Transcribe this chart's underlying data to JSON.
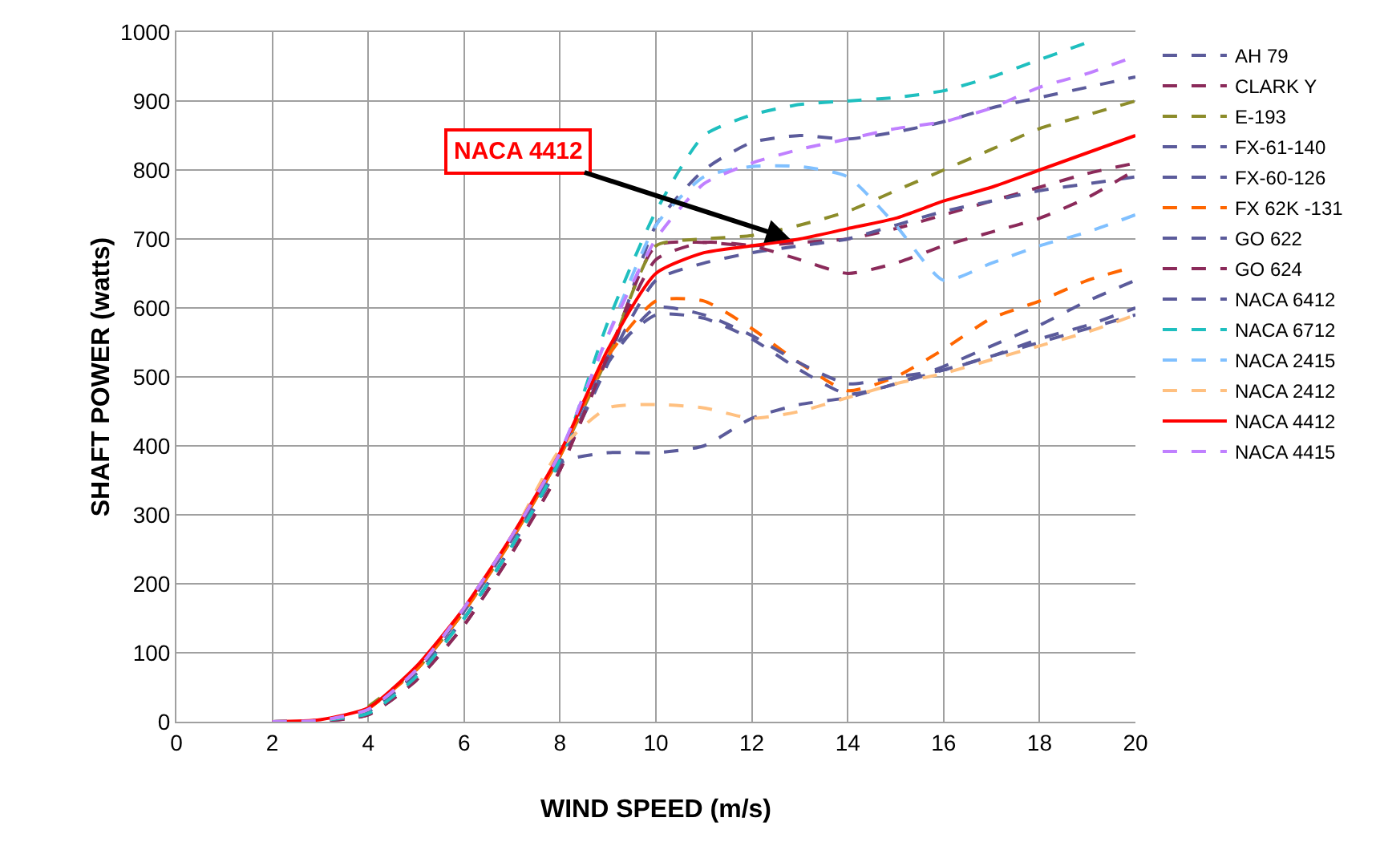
{
  "chart_data": {
    "type": "line",
    "xlabel": "WIND SPEED (m/s)",
    "ylabel": "SHAFT POWER (watts)",
    "x": [
      2,
      3,
      4,
      5,
      6,
      7,
      8,
      9,
      10,
      11,
      12,
      13,
      14,
      15,
      16,
      17,
      18,
      19,
      20
    ],
    "xlim": [
      0,
      20
    ],
    "xticks": [
      0,
      2,
      4,
      6,
      8,
      10,
      12,
      14,
      16,
      18,
      20
    ],
    "ylim": [
      0,
      1000
    ],
    "yticks": [
      0,
      100,
      200,
      300,
      400,
      500,
      600,
      700,
      800,
      900,
      1000
    ],
    "grid": true,
    "legend": "right",
    "marker": "none",
    "annotations": [
      {
        "text": "NACA 4412",
        "x": 12.8,
        "y": 700
      }
    ],
    "series": [
      {
        "name": "AH 79",
        "color": "#5b5b9b",
        "line_style": "dashed",
        "values": [
          0,
          2,
          15,
          70,
          150,
          255,
          375,
          520,
          720,
          800,
          840,
          850,
          845,
          855,
          870,
          890,
          905,
          920,
          935
        ]
      },
      {
        "name": "CLARK Y",
        "color": "#8b2a5a",
        "line_style": "dashed",
        "values": [
          0,
          1,
          10,
          60,
          140,
          245,
          365,
          530,
          690,
          695,
          690,
          695,
          700,
          715,
          735,
          755,
          775,
          795,
          810
        ]
      },
      {
        "name": "E-193",
        "color": "#8c8c2a",
        "line_style": "dashed",
        "values": [
          null,
          null,
          22,
          75,
          160,
          265,
          385,
          530,
          690,
          700,
          705,
          720,
          740,
          770,
          800,
          830,
          860,
          880,
          900
        ]
      },
      {
        "name": "FX-61-140",
        "color": "#5b5b9b",
        "line_style": "dashed",
        "values": [
          0,
          2,
          15,
          70,
          150,
          255,
          375,
          520,
          640,
          665,
          680,
          690,
          700,
          720,
          740,
          755,
          770,
          780,
          790
        ]
      },
      {
        "name": "FX-60-126",
        "color": "#5b5b9b",
        "line_style": "dashed",
        "values": [
          0,
          2,
          18,
          75,
          160,
          265,
          385,
          530,
          590,
          585,
          555,
          510,
          475,
          490,
          515,
          545,
          575,
          610,
          640
        ]
      },
      {
        "name": "FX 62K -131",
        "color": "#ff6600",
        "line_style": "dashed",
        "values": [
          null,
          null,
          18,
          75,
          160,
          265,
          385,
          530,
          610,
          610,
          570,
          520,
          480,
          500,
          540,
          585,
          610,
          640,
          660
        ]
      },
      {
        "name": "GO 622",
        "color": "#5b5b9b",
        "line_style": "dashed",
        "values": [
          0,
          2,
          15,
          70,
          150,
          255,
          375,
          520,
          600,
          590,
          560,
          520,
          490,
          500,
          510,
          530,
          555,
          575,
          600
        ]
      },
      {
        "name": "GO 624",
        "color": "#8b2a5a",
        "line_style": "dashed",
        "values": [
          0,
          1,
          10,
          60,
          140,
          245,
          365,
          530,
          670,
          695,
          690,
          670,
          650,
          665,
          690,
          710,
          730,
          760,
          800
        ]
      },
      {
        "name": "NACA 6412",
        "color": "#5b5b9b",
        "line_style": "dashed",
        "values": [
          0,
          2,
          15,
          70,
          150,
          255,
          375,
          390,
          390,
          400,
          440,
          460,
          470,
          490,
          510,
          530,
          550,
          570,
          590
        ]
      },
      {
        "name": "NACA 6712",
        "color": "#1fbfbf",
        "line_style": "dashed",
        "values": [
          0,
          2,
          12,
          65,
          150,
          255,
          380,
          580,
          740,
          850,
          880,
          895,
          900,
          905,
          915,
          935,
          960,
          985,
          null
        ]
      },
      {
        "name": "NACA 2415",
        "color": "#80c0ff",
        "line_style": "dashed",
        "values": [
          0,
          2,
          18,
          75,
          165,
          270,
          390,
          560,
          720,
          790,
          805,
          805,
          790,
          720,
          640,
          665,
          690,
          710,
          735
        ]
      },
      {
        "name": "NACA 2412",
        "color": "#ffc080",
        "line_style": "dashed",
        "values": [
          0,
          2,
          18,
          75,
          165,
          270,
          395,
          455,
          460,
          455,
          440,
          450,
          470,
          490,
          505,
          525,
          545,
          565,
          590
        ]
      },
      {
        "name": "NACA 4412",
        "color": "#ff0000",
        "line_style": "solid",
        "values": [
          0,
          3,
          20,
          80,
          165,
          270,
          390,
          540,
          650,
          680,
          690,
          700,
          715,
          730,
          755,
          775,
          800,
          825,
          850
        ]
      },
      {
        "name": "NACA 4415",
        "color": "#c080ff",
        "line_style": "dashed",
        "values": [
          0,
          2,
          18,
          75,
          165,
          270,
          390,
          560,
          700,
          780,
          810,
          830,
          845,
          860,
          870,
          890,
          920,
          940,
          965
        ]
      }
    ]
  }
}
